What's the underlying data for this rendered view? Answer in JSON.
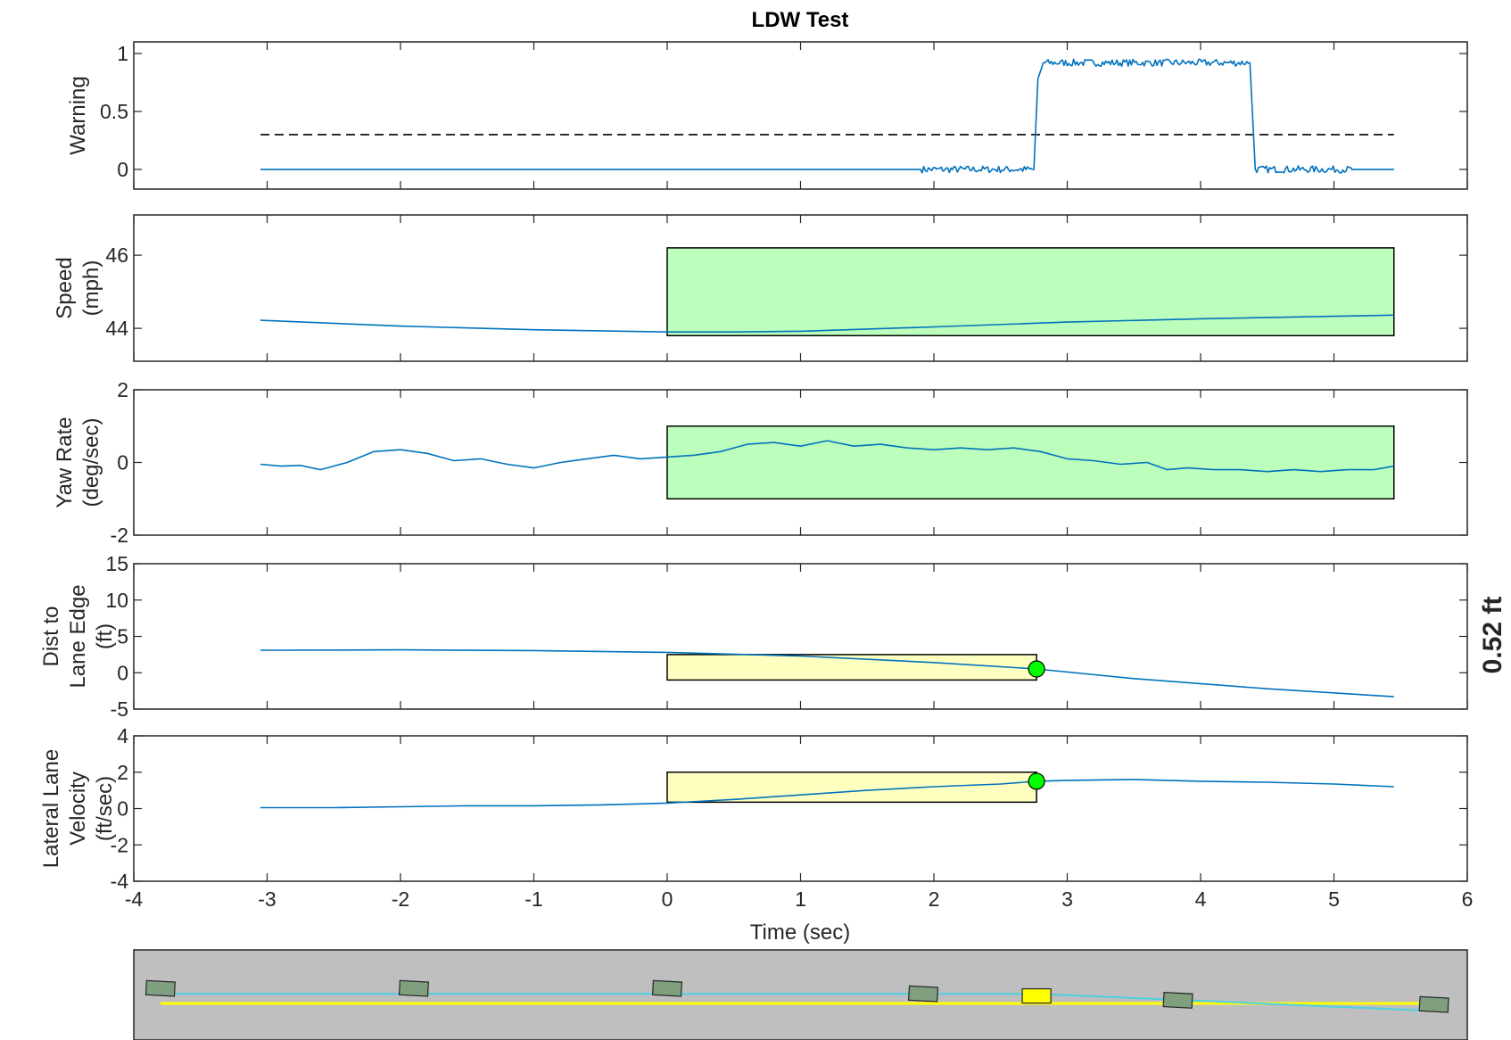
{
  "title": "LDW Test",
  "x_axis": {
    "label": "Time (sec)",
    "range": [
      -4,
      6
    ],
    "ticks": [
      -4,
      -3,
      -2,
      -1,
      0,
      1,
      2,
      3,
      4,
      5,
      6
    ]
  },
  "callout": {
    "text": "0.52 ft",
    "color": "#008000"
  },
  "colors": {
    "signal": "#0072BD",
    "green_box": "#BCFFBC",
    "yellow_box": "#FFFFC0",
    "marker": "#00FF00",
    "threshold": "#000000",
    "road": "#BFBFBF",
    "vehicle": "#7F9F7F",
    "vehicle_warning": "#FFFF00",
    "lane_yellow": "#FFFF00",
    "path_cyan": "#4DD0E1"
  },
  "chart_data": [
    {
      "type": "line",
      "ylabel": [
        "Warning"
      ],
      "ylim": [
        -0.17,
        1.1
      ],
      "yticks": [
        0,
        0.5,
        1
      ],
      "yticklabels": [
        "0",
        "0.5",
        "1"
      ],
      "series": [
        {
          "x": [
            -3.05,
            1.9,
            1.9,
            2.75,
            2.75,
            2.78,
            2.82,
            4.37,
            4.41,
            4.41,
            5.15,
            5.15,
            5.45
          ],
          "y": [
            0,
            0,
            0,
            0,
            0,
            0.78,
            0.92,
            0.92,
            0,
            0,
            0,
            0,
            0
          ],
          "noise": [
            [
              1.9,
              2.75,
              0.03
            ],
            [
              2.82,
              4.37,
              0.03
            ],
            [
              4.41,
              5.15,
              0.03
            ]
          ]
        }
      ],
      "threshold": 0.3
    },
    {
      "type": "line",
      "ylabel": [
        "Speed",
        "(mph)"
      ],
      "ylim": [
        43.1,
        47.1
      ],
      "yticks": [
        44,
        46
      ],
      "yticklabels": [
        "44",
        "46"
      ],
      "box": {
        "x": [
          0,
          5.45
        ],
        "y": [
          43.8,
          46.2
        ],
        "fill": "green"
      },
      "series": [
        {
          "x": [
            -3.05,
            -2,
            -1,
            0,
            0.5,
            1,
            2,
            3,
            4,
            5,
            5.45
          ],
          "y": [
            44.22,
            44.06,
            43.96,
            43.9,
            43.9,
            43.92,
            44.04,
            44.17,
            44.26,
            44.33,
            44.36
          ]
        }
      ]
    },
    {
      "type": "line",
      "ylabel": [
        "Yaw Rate",
        "(deg/sec)"
      ],
      "ylim": [
        -2,
        2
      ],
      "yticks": [
        -2,
        0,
        2
      ],
      "yticklabels": [
        "-2",
        "0",
        "2"
      ],
      "box": {
        "x": [
          0,
          5.45
        ],
        "y": [
          -1,
          1
        ],
        "fill": "green"
      },
      "series": [
        {
          "x": [
            -3.05,
            -2.9,
            -2.75,
            -2.6,
            -2.4,
            -2.2,
            -2.0,
            -1.8,
            -1.6,
            -1.4,
            -1.2,
            -1.0,
            -0.8,
            -0.6,
            -0.4,
            -0.2,
            0,
            0.2,
            0.4,
            0.6,
            0.8,
            1.0,
            1.2,
            1.4,
            1.6,
            1.8,
            2.0,
            2.2,
            2.4,
            2.6,
            2.8,
            3.0,
            3.2,
            3.4,
            3.6,
            3.75,
            3.9,
            4.1,
            4.3,
            4.5,
            4.7,
            4.9,
            5.1,
            5.3,
            5.45
          ],
          "y": [
            -0.05,
            -0.1,
            -0.08,
            -0.2,
            0.0,
            0.3,
            0.35,
            0.25,
            0.05,
            0.1,
            -0.05,
            -0.15,
            0.0,
            0.1,
            0.2,
            0.1,
            0.15,
            0.2,
            0.3,
            0.5,
            0.55,
            0.45,
            0.6,
            0.45,
            0.5,
            0.4,
            0.35,
            0.4,
            0.35,
            0.4,
            0.3,
            0.1,
            0.05,
            -0.05,
            0.0,
            -0.2,
            -0.15,
            -0.2,
            -0.2,
            -0.25,
            -0.2,
            -0.25,
            -0.2,
            -0.2,
            -0.1
          ]
        }
      ]
    },
    {
      "type": "line",
      "ylabel": [
        "Dist to",
        "Lane Edge",
        "(ft)"
      ],
      "ylim": [
        -5,
        15
      ],
      "yticks": [
        -5,
        0,
        5,
        10,
        15
      ],
      "yticklabels": [
        "-5",
        "0",
        "5",
        "10",
        "15"
      ],
      "box": {
        "x": [
          0,
          2.77
        ],
        "y": [
          -1,
          2.5
        ],
        "fill": "yellow"
      },
      "marker": {
        "x": 2.77,
        "y": 0.52
      },
      "series": [
        {
          "x": [
            -3.05,
            -2,
            -1,
            0,
            1,
            2,
            2.77,
            3.5,
            4.5,
            5.45
          ],
          "y": [
            3.1,
            3.15,
            3.05,
            2.8,
            2.3,
            1.4,
            0.52,
            -0.8,
            -2.2,
            -3.3
          ]
        }
      ]
    },
    {
      "type": "line",
      "ylabel": [
        "Lateral Lane",
        "Velocity",
        "(ft/sec)"
      ],
      "ylim": [
        -4,
        4
      ],
      "yticks": [
        -4,
        -2,
        0,
        2,
        4
      ],
      "yticklabels": [
        "-4",
        "-2",
        "0",
        "2",
        "4"
      ],
      "box": {
        "x": [
          0,
          2.77
        ],
        "y": [
          0.35,
          2.0
        ],
        "fill": "yellow"
      },
      "marker": {
        "x": 2.77,
        "y": 1.5
      },
      "series": [
        {
          "x": [
            -3.05,
            -2.5,
            -2,
            -1.5,
            -1,
            -0.5,
            0,
            0.5,
            1,
            1.5,
            2,
            2.5,
            2.77,
            3,
            3.5,
            4,
            4.5,
            5,
            5.45
          ],
          "y": [
            0.05,
            0.05,
            0.1,
            0.15,
            0.15,
            0.2,
            0.3,
            0.5,
            0.75,
            1.0,
            1.2,
            1.35,
            1.5,
            1.55,
            1.6,
            1.5,
            1.45,
            1.35,
            1.2
          ]
        }
      ]
    },
    {
      "type": "scatter",
      "ylabel": [],
      "xlim": [
        -4,
        6
      ],
      "ylim": [
        0,
        1
      ],
      "vehicles": [
        {
          "x": -3.8,
          "y": 0.36,
          "warning": false
        },
        {
          "x": -1.9,
          "y": 0.36,
          "warning": false
        },
        {
          "x": 0.0,
          "y": 0.36,
          "warning": false
        },
        {
          "x": 1.92,
          "y": 0.41,
          "warning": false
        },
        {
          "x": 2.77,
          "y": 0.43,
          "warning": true
        },
        {
          "x": 3.83,
          "y": 0.47,
          "warning": false
        },
        {
          "x": 5.75,
          "y": 0.51,
          "warning": false
        }
      ],
      "lane_line": {
        "x": [
          -3.8,
          5.75
        ],
        "y": [
          0.5,
          0.5
        ]
      },
      "path": {
        "x": [
          -3.8,
          2.77,
          5.75
        ],
        "y": [
          0.41,
          0.41,
          0.57
        ]
      }
    }
  ]
}
